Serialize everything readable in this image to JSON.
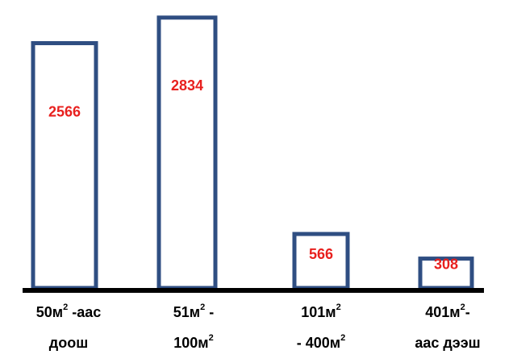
{
  "chart_data": {
    "type": "bar",
    "title": "",
    "xlabel": "",
    "ylabel": "",
    "categories": [
      {
        "l1a": "50м",
        "l1sup": "2",
        "l1b": " -аас",
        "l2a": "доош",
        "l2sup": "",
        "l2b": ""
      },
      {
        "l1a": "51м",
        "l1sup": "2",
        "l1b": " -",
        "l2a": "100м",
        "l2sup": "2",
        "l2b": ""
      },
      {
        "l1a": "101м",
        "l1sup": "2",
        "l1b": "",
        "l2a": "- 400м",
        "l2sup": "2",
        "l2b": ""
      },
      {
        "l1a": "401м",
        "l1sup": "2",
        "l1b": "-",
        "l2a": "аас дээш",
        "l2sup": "",
        "l2b": ""
      }
    ],
    "values": [
      2566,
      2834,
      566,
      308
    ],
    "ylim": [
      0,
      2900
    ],
    "value_labels_inside_bars": true,
    "grid": false,
    "colors": {
      "bar_outline": "#2F4E82",
      "bar_fill": "#FFFFFF",
      "value_label": "#E8201E",
      "baseline": "#000000",
      "category_label": "#000000"
    }
  }
}
